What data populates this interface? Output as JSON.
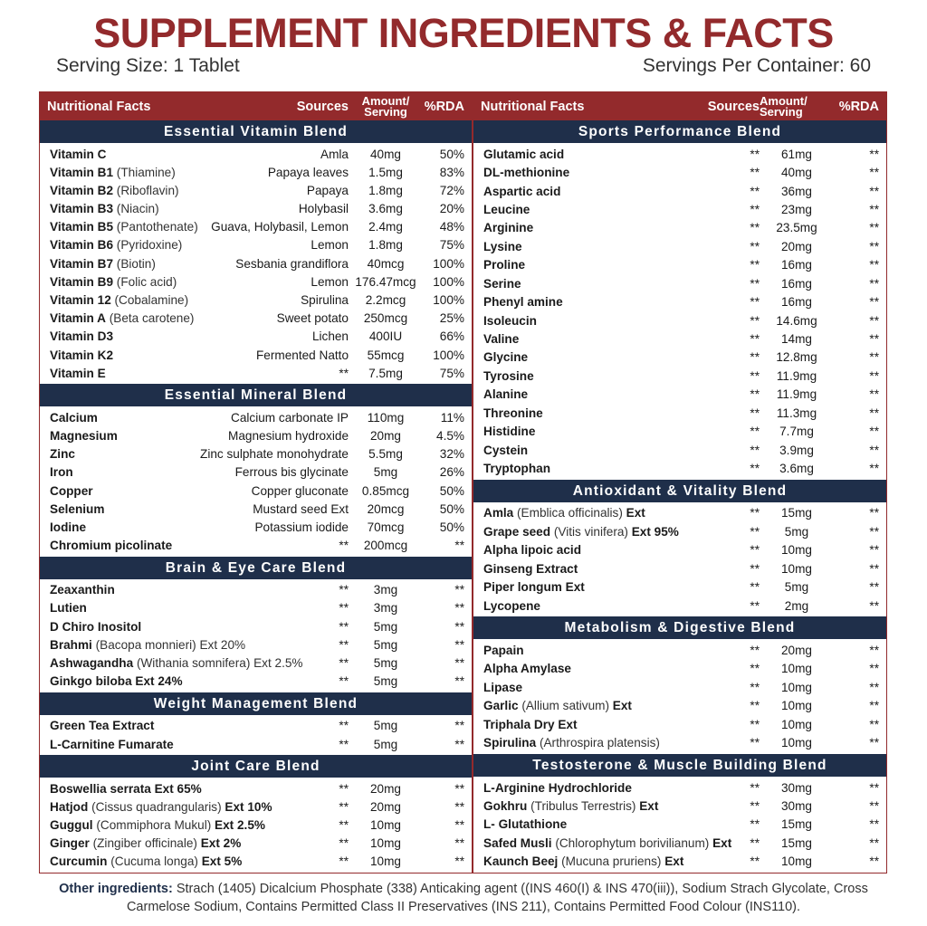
{
  "header": {
    "title": "SUPPLEMENT INGREDIENTS & FACTS",
    "serving_size": "Serving Size: 1 Tablet",
    "servings": "Servings Per Container: 60"
  },
  "columns": [
    {
      "headers": {
        "facts": "Nutritional Facts",
        "sources": "Sources",
        "amount": [
          "Amount/",
          "Serving"
        ],
        "rda": "%RDA"
      },
      "sections": [
        {
          "title": "Essential Vitamin Blend",
          "rows": [
            {
              "name": "Vitamin C",
              "source": "Amla",
              "amount": "40mg",
              "rda": "50%"
            },
            {
              "name": "Vitamin B1",
              "detail": "(Thiamine)",
              "source": "Papaya leaves",
              "amount": "1.5mg",
              "rda": "83%"
            },
            {
              "name": "Vitamin B2",
              "detail": "(Riboflavin)",
              "source": "Papaya",
              "amount": "1.8mg",
              "rda": "72%"
            },
            {
              "name": "Vitamin B3",
              "detail": "(Niacin)",
              "source": "Holybasil",
              "amount": "3.6mg",
              "rda": "20%"
            },
            {
              "name": "Vitamin B5",
              "detail": "(Pantothenate)",
              "source": "Guava, Holybasil, Lemon",
              "amount": "2.4mg",
              "rda": "48%"
            },
            {
              "name": "Vitamin B6",
              "detail": "(Pyridoxine)",
              "source": "Lemon",
              "amount": "1.8mg",
              "rda": "75%"
            },
            {
              "name": "Vitamin B7",
              "detail": "(Biotin)",
              "source": "Sesbania grandiflora",
              "amount": "40mcg",
              "rda": "100%"
            },
            {
              "name": "Vitamin B9",
              "detail": "(Folic acid)",
              "source": "Lemon",
              "amount": "176.47mcg",
              "rda": "100%"
            },
            {
              "name": "Vitamin 12",
              "detail": "(Cobalamine)",
              "source": "Spirulina",
              "amount": "2.2mcg",
              "rda": "100%"
            },
            {
              "name": "Vitamin A",
              "detail": "(Beta carotene)",
              "source": "Sweet potato",
              "amount": "250mcg",
              "rda": "25%"
            },
            {
              "name": "Vitamin D3",
              "source": "Lichen",
              "amount": "400IU",
              "rda": "66%"
            },
            {
              "name": "Vitamin K2",
              "source": "Fermented Natto",
              "amount": "55mcg",
              "rda": "100%"
            },
            {
              "name": "Vitamin E",
              "source": "**",
              "amount": "7.5mg",
              "rda": "75%"
            }
          ]
        },
        {
          "title": "Essential Mineral Blend",
          "rows": [
            {
              "name": "Calcium",
              "source": "Calcium carbonate IP",
              "amount": "110mg",
              "rda": "11%"
            },
            {
              "name": "Magnesium",
              "source": "Magnesium hydroxide",
              "amount": "20mg",
              "rda": "4.5%"
            },
            {
              "name": "Zinc",
              "source": "Zinc sulphate monohydrate",
              "amount": "5.5mg",
              "rda": "32%"
            },
            {
              "name": "Iron",
              "source": "Ferrous bis glycinate",
              "amount": "5mg",
              "rda": "26%"
            },
            {
              "name": "Copper",
              "source": "Copper gluconate",
              "amount": "0.85mcg",
              "rda": "50%"
            },
            {
              "name": "Selenium",
              "source": "Mustard seed Ext",
              "amount": "20mcg",
              "rda": "50%"
            },
            {
              "name": "Iodine",
              "source": "Potassium iodide",
              "amount": "70mcg",
              "rda": "50%"
            },
            {
              "name": "Chromium picolinate",
              "source": "**",
              "amount": "200mcg",
              "rda": "**"
            }
          ]
        },
        {
          "title": "Brain & Eye Care Blend",
          "rows": [
            {
              "name": "Zeaxanthin",
              "source": "**",
              "amount": "3mg",
              "rda": "**"
            },
            {
              "name": "Lutien",
              "source": "**",
              "amount": "3mg",
              "rda": "**"
            },
            {
              "name": "D Chiro Inositol",
              "source": "**",
              "amount": "5mg",
              "rda": "**"
            },
            {
              "name": "Brahmi",
              "detail": "(Bacopa monnieri) Ext 20%",
              "source": "**",
              "amount": "5mg",
              "rda": "**"
            },
            {
              "name": "Ashwagandha",
              "detail": "(Withania somnifera) Ext 2.5%",
              "source": "**",
              "amount": "5mg",
              "rda": "**"
            },
            {
              "name": "Ginkgo biloba Ext 24%",
              "source": "**",
              "amount": "5mg",
              "rda": "**"
            }
          ]
        },
        {
          "title": "Weight Management Blend",
          "rows": [
            {
              "name": "Green Tea Extract",
              "source": "**",
              "amount": "5mg",
              "rda": "**"
            },
            {
              "name": "L-Carnitine Fumarate",
              "source": "**",
              "amount": "5mg",
              "rda": "**"
            }
          ]
        },
        {
          "title": "Joint Care Blend",
          "rows": [
            {
              "name": "Boswellia serrata Ext 65%",
              "source": "**",
              "amount": "20mg",
              "rda": "**"
            },
            {
              "name": "Hatjod",
              "detail": "(Cissus quadrangularis)",
              "suffix": "Ext 10%",
              "source": "**",
              "amount": "20mg",
              "rda": "**"
            },
            {
              "name": "Guggul",
              "detail": "(Commiphora Mukul)",
              "suffix": "Ext 2.5%",
              "source": "**",
              "amount": "10mg",
              "rda": "**"
            },
            {
              "name": "Ginger",
              "detail": "(Zingiber officinale)",
              "suffix": "Ext 2%",
              "source": "**",
              "amount": "10mg",
              "rda": "**"
            },
            {
              "name": "Curcumin",
              "detail": "(Cucuma longa)",
              "suffix": "Ext 5%",
              "source": "**",
              "amount": "10mg",
              "rda": "**"
            }
          ]
        }
      ]
    },
    {
      "headers": {
        "facts": "Nutritional Facts",
        "sources": "Sources",
        "amount": [
          "Amount/",
          "Serving"
        ],
        "rda": "%RDA"
      },
      "sections": [
        {
          "title": "Sports Performance Blend",
          "rows": [
            {
              "name": "Glutamic acid",
              "source": "**",
              "amount": "61mg",
              "rda": "**"
            },
            {
              "name": "DL-methionine",
              "source": "**",
              "amount": "40mg",
              "rda": "**"
            },
            {
              "name": "Aspartic acid",
              "source": "**",
              "amount": "36mg",
              "rda": "**"
            },
            {
              "name": "Leucine",
              "source": "**",
              "amount": "23mg",
              "rda": "**"
            },
            {
              "name": "Arginine",
              "source": "**",
              "amount": "23.5mg",
              "rda": "**"
            },
            {
              "name": "Lysine",
              "source": "**",
              "amount": "20mg",
              "rda": "**"
            },
            {
              "name": "Proline",
              "source": "**",
              "amount": "16mg",
              "rda": "**"
            },
            {
              "name": "Serine",
              "source": "**",
              "amount": "16mg",
              "rda": "**"
            },
            {
              "name": "Phenyl amine",
              "source": "**",
              "amount": "16mg",
              "rda": "**"
            },
            {
              "name": "Isoleucin",
              "source": "**",
              "amount": "14.6mg",
              "rda": "**"
            },
            {
              "name": "Valine",
              "source": "**",
              "amount": "14mg",
              "rda": "**"
            },
            {
              "name": "Glycine",
              "source": "**",
              "amount": "12.8mg",
              "rda": "**"
            },
            {
              "name": "Tyrosine",
              "source": "**",
              "amount": "11.9mg",
              "rda": "**"
            },
            {
              "name": "Alanine",
              "source": "**",
              "amount": "11.9mg",
              "rda": "**"
            },
            {
              "name": "Threonine",
              "source": "**",
              "amount": "11.3mg",
              "rda": "**"
            },
            {
              "name": "Histidine",
              "source": "**",
              "amount": "7.7mg",
              "rda": "**"
            },
            {
              "name": "Cystein",
              "source": "**",
              "amount": "3.9mg",
              "rda": "**"
            },
            {
              "name": "Tryptophan",
              "source": "**",
              "amount": "3.6mg",
              "rda": "**"
            }
          ]
        },
        {
          "title": "Antioxidant & Vitality Blend",
          "rows": [
            {
              "name": "Amla",
              "detail": "(Emblica officinalis)",
              "suffix": "Ext",
              "source": "**",
              "amount": "15mg",
              "rda": "**"
            },
            {
              "name": "Grape seed",
              "detail": "(Vitis vinifera)",
              "suffix": "Ext 95%",
              "source": "**",
              "amount": "5mg",
              "rda": "**"
            },
            {
              "name": "Alpha lipoic acid",
              "source": "**",
              "amount": "10mg",
              "rda": "**"
            },
            {
              "name": "Ginseng Extract",
              "source": "**",
              "amount": "10mg",
              "rda": "**"
            },
            {
              "name": "Piper longum Ext",
              "source": "**",
              "amount": "5mg",
              "rda": "**"
            },
            {
              "name": "Lycopene",
              "source": "**",
              "amount": "2mg",
              "rda": "**"
            }
          ]
        },
        {
          "title": "Metabolism & Digestive Blend",
          "rows": [
            {
              "name": "Papain",
              "source": "**",
              "amount": "20mg",
              "rda": "**"
            },
            {
              "name": "Alpha Amylase",
              "source": "**",
              "amount": "10mg",
              "rda": "**"
            },
            {
              "name": "Lipase",
              "source": "**",
              "amount": "10mg",
              "rda": "**"
            },
            {
              "name": "Garlic",
              "detail": "(Allium sativum)",
              "suffix": "Ext",
              "source": "**",
              "amount": "10mg",
              "rda": "**"
            },
            {
              "name": "Triphala Dry Ext",
              "source": "**",
              "amount": "10mg",
              "rda": "**"
            },
            {
              "name": "Spirulina",
              "detail": "(Arthrospira platensis)",
              "source": "**",
              "amount": "10mg",
              "rda": "**"
            }
          ]
        },
        {
          "title": "Testosterone & Muscle Building Blend",
          "rows": [
            {
              "name": "L-Arginine Hydrochloride",
              "source": "**",
              "amount": "30mg",
              "rda": "**"
            },
            {
              "name": "Gokhru",
              "detail": "(Tribulus Terrestris)",
              "suffix": "Ext",
              "source": "**",
              "amount": "30mg",
              "rda": "**"
            },
            {
              "name": "L- Glutathione",
              "source": "**",
              "amount": "15mg",
              "rda": "**"
            },
            {
              "name": "Safed Musli",
              "detail": "(Chlorophytum borivilianum)",
              "suffix": "Ext",
              "source": "**",
              "amount": "15mg",
              "rda": "**"
            },
            {
              "name": "Kaunch Beej",
              "detail": "(Mucuna pruriens)",
              "suffix": "Ext",
              "source": "**",
              "amount": "10mg",
              "rda": "**"
            }
          ]
        }
      ]
    }
  ],
  "footer": {
    "label": "Other ingredients:",
    "text": "Strach (1405) Dicalcium Phosphate (338) Anticaking agent ((INS 460(I) & INS 470(iii)), Sodium Strach Glycolate, Cross Carmelose Sodium, Contains Permitted Class II Preservatives (INS 211), Contains Permitted Food Colour (INS110)."
  }
}
